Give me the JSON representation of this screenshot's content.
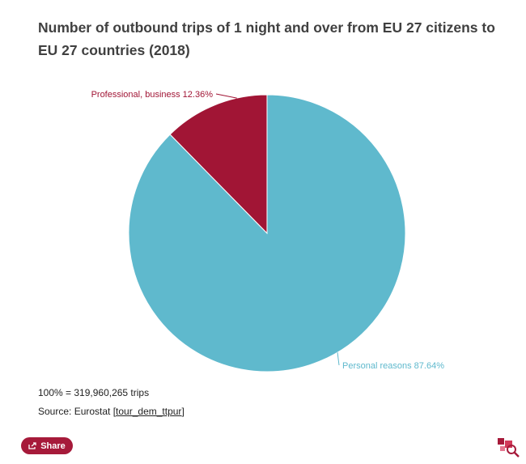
{
  "title": "Number of outbound trips of 1 night and over from EU 27 citizens to EU 27 countries (2018)",
  "chart_data": {
    "type": "pie",
    "slices": [
      {
        "label": "Personal reasons",
        "value": 87.64,
        "value_label": "87.64%",
        "color": "#5fb9cd"
      },
      {
        "label": "Professional, business",
        "value": 12.36,
        "value_label": "12.36%",
        "color": "#a11535"
      }
    ],
    "start": "12 o'clock, counter-clockwise for Professional, business",
    "legend": "none (labels on slices)"
  },
  "footnote": {
    "total": "100% = 319,960,265 trips",
    "source_prefix": "Source: Eurostat [",
    "source_code": "tour_dem_ttpur",
    "source_suffix": "]"
  },
  "share": {
    "label": "Share"
  },
  "colors": {
    "accent": "#a61a3a"
  }
}
